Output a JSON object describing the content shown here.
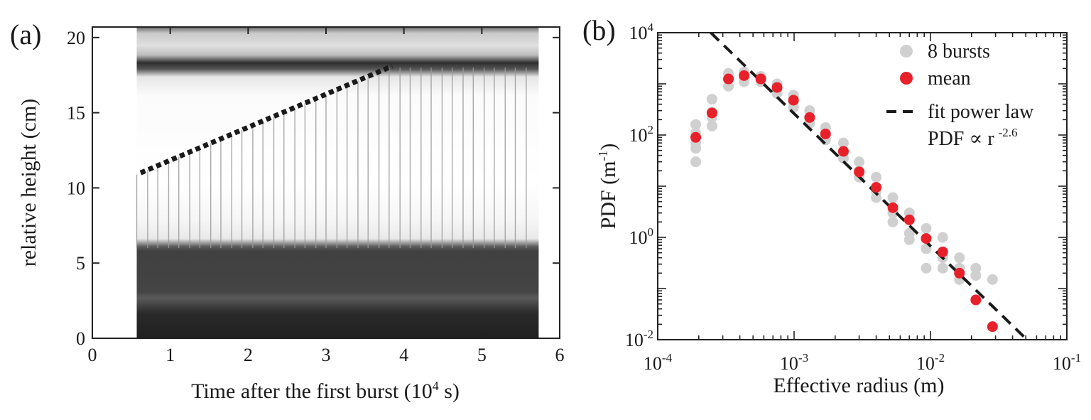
{
  "panels": {
    "a": {
      "label": "(a)",
      "xlabel": "Time after the first burst (10",
      "xlabel_sup": "4",
      "xlabel_tail": " s)",
      "ylabel": "relative height (cm)",
      "xticks": [
        "0",
        "1",
        "2",
        "3",
        "4",
        "5",
        "6"
      ],
      "yticks": [
        "0",
        "5",
        "10",
        "15",
        "20"
      ]
    },
    "b": {
      "label": "(b)",
      "xlabel": "Effective radius (m)",
      "ylabel": "PDF (m",
      "ylabel_sup": "-1",
      "ylabel_tail": ")",
      "xtick_base": [
        "10",
        "10",
        "10",
        "10"
      ],
      "xtick_exp": [
        "-4",
        "-3",
        "-2",
        "-1"
      ],
      "ytick_base": [
        "10",
        "10",
        "10",
        "10"
      ],
      "ytick_exp": [
        "-2",
        "0",
        "2",
        "4"
      ],
      "legend": {
        "bursts": "8 bursts",
        "mean": "mean",
        "fit": "fit power law",
        "fit_formula": "PDF ∝ r",
        "fit_exp": "-2.6"
      }
    }
  },
  "chart_data": [
    {
      "type": "heatmap",
      "xlabel": "Time after the first burst (10^4 s)",
      "ylabel": "relative height (cm)",
      "xlim": [
        0,
        6
      ],
      "ylim": [
        0,
        20.7
      ],
      "data_time_range": [
        0.57,
        5.73
      ],
      "burst_times": [
        0.57,
        0.71,
        0.84,
        0.98,
        1.11,
        1.25,
        1.38,
        1.52,
        1.65,
        1.79,
        1.92,
        2.06,
        2.19,
        2.33,
        2.46,
        2.6,
        2.73,
        2.87,
        3.0,
        3.14,
        3.27,
        3.41,
        3.54,
        3.68,
        3.81,
        3.95,
        4.08,
        4.22,
        4.35,
        4.49,
        4.62,
        4.76,
        4.89,
        5.03,
        5.16,
        5.3,
        5.43,
        5.57
      ],
      "overlay_line": {
        "style": "dotted",
        "x": [
          0.62,
          3.85
        ],
        "y": [
          11.0,
          18.1
        ]
      },
      "colors": {
        "dark": "#3a3a3a",
        "overlay": "#1a1a1a"
      }
    },
    {
      "type": "scatter",
      "scale": {
        "x": "log",
        "y": "log"
      },
      "xlim": [
        0.0001,
        0.1
      ],
      "ylim": [
        0.01,
        10000
      ],
      "xlabel": "Effective radius (m)",
      "ylabel": "PDF (m^-1)",
      "legend_position": "top-right",
      "series": [
        {
          "name": "8 bursts",
          "color": "#d0d0d0",
          "x": [
            0.00019,
            0.00019,
            0.00019,
            0.00019,
            0.00019,
            0.00025,
            0.00025,
            0.00025,
            0.00025,
            0.00033,
            0.00033,
            0.00033,
            0.00043,
            0.00043,
            0.00043,
            0.00057,
            0.00057,
            0.00075,
            0.00075,
            0.00075,
            0.00099,
            0.00099,
            0.00099,
            0.0013,
            0.0013,
            0.0013,
            0.0017,
            0.0017,
            0.0017,
            0.0023,
            0.0023,
            0.0023,
            0.003,
            0.003,
            0.003,
            0.004,
            0.004,
            0.004,
            0.0053,
            0.0053,
            0.0053,
            0.007,
            0.007,
            0.007,
            0.0093,
            0.0093,
            0.0093,
            0.0123,
            0.0123,
            0.0123,
            0.0163,
            0.0163,
            0.0163,
            0.0215,
            0.0215,
            0.0285
          ],
          "y": [
            160,
            110,
            70,
            55,
            30,
            500,
            280,
            220,
            150,
            1600,
            1200,
            900,
            1700,
            1300,
            1100,
            1400,
            1100,
            1000,
            800,
            650,
            600,
            450,
            350,
            300,
            220,
            170,
            140,
            100,
            80,
            70,
            45,
            35,
            30,
            20,
            15,
            15,
            8,
            6,
            6,
            3,
            2,
            3,
            1.2,
            0.9,
            1.5,
            0.6,
            0.25,
            1.0,
            0.4,
            0.25,
            0.4,
            0.25,
            0.15,
            0.25,
            0.18,
            0.15
          ]
        },
        {
          "name": "mean",
          "color": "#e8202a",
          "x": [
            0.00019,
            0.00025,
            0.00033,
            0.00043,
            0.00057,
            0.00075,
            0.00099,
            0.0013,
            0.0017,
            0.0023,
            0.003,
            0.004,
            0.0053,
            0.007,
            0.0093,
            0.0123,
            0.0163,
            0.0215,
            0.0285
          ],
          "y": [
            90,
            270,
            1250,
            1450,
            1250,
            850,
            480,
            220,
            105,
            48,
            19,
            9.5,
            3.8,
            2.2,
            0.95,
            0.52,
            0.2,
            0.06,
            0.018
          ]
        },
        {
          "name": "fit power law",
          "type": "line",
          "style": "dashed",
          "color": "#1a1a1a",
          "x": [
            0.000245,
            0.051
          ],
          "y": [
            10000,
            0.01
          ]
        }
      ]
    }
  ]
}
